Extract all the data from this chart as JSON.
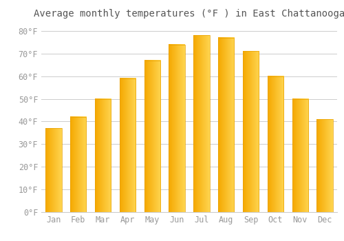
{
  "title": "Average monthly temperatures (°F ) in East Chattanooga",
  "months": [
    "Jan",
    "Feb",
    "Mar",
    "Apr",
    "May",
    "Jun",
    "Jul",
    "Aug",
    "Sep",
    "Oct",
    "Nov",
    "Dec"
  ],
  "values": [
    37,
    42,
    50,
    59,
    67,
    74,
    78,
    77,
    71,
    60,
    50,
    41
  ],
  "bar_color_left": "#F5A800",
  "bar_color_right": "#FFD966",
  "background_color": "#FFFFFF",
  "grid_color": "#CCCCCC",
  "text_color": "#999999",
  "ylim": [
    0,
    83
  ],
  "yticks": [
    0,
    10,
    20,
    30,
    40,
    50,
    60,
    70,
    80
  ],
  "title_fontsize": 10,
  "tick_fontsize": 8.5
}
